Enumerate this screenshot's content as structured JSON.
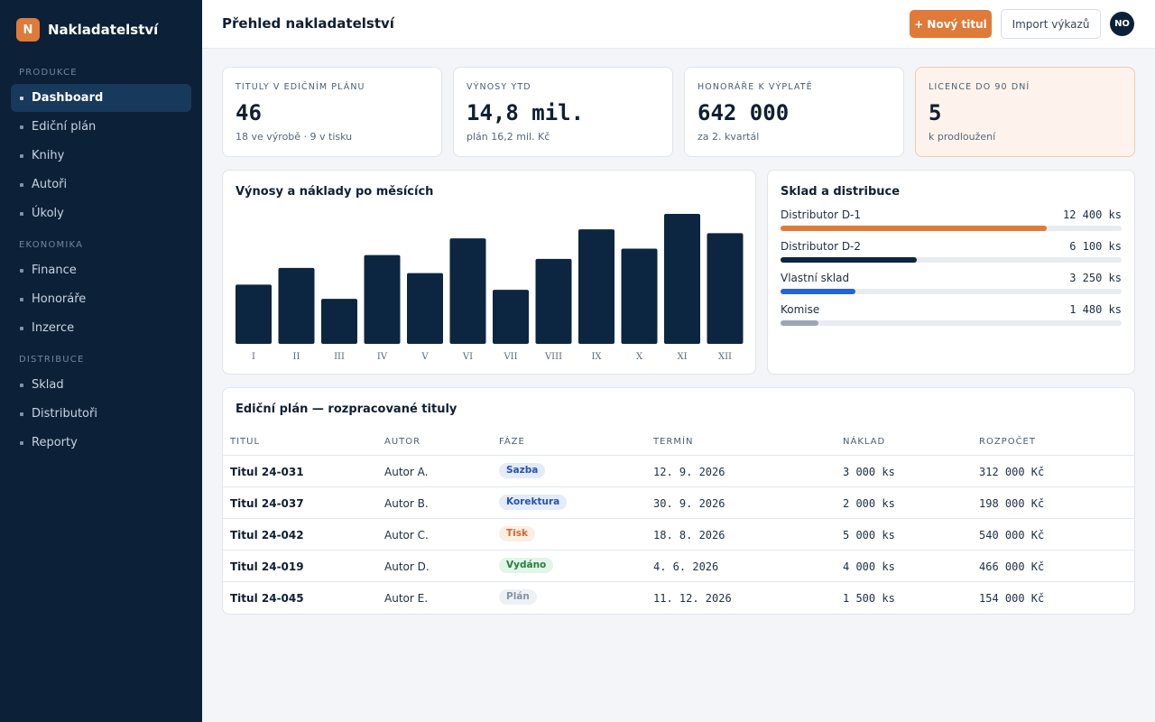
{
  "brand": {
    "logo_letter": "N",
    "name": "Nakladatelství"
  },
  "sidebar": {
    "sections": [
      {
        "label": "Produkce",
        "items": [
          {
            "label": "Dashboard",
            "active": true
          },
          {
            "label": "Ediční plán"
          },
          {
            "label": "Knihy"
          },
          {
            "label": "Autoři"
          },
          {
            "label": "Úkoly"
          }
        ]
      },
      {
        "label": "Ekonomika",
        "items": [
          {
            "label": "Finance"
          },
          {
            "label": "Honoráře"
          },
          {
            "label": "Inzerce"
          }
        ]
      },
      {
        "label": "Distribuce",
        "items": [
          {
            "label": "Sklad"
          },
          {
            "label": "Distributoři"
          },
          {
            "label": "Reporty"
          }
        ]
      }
    ]
  },
  "header": {
    "title": "Přehled nakladatelství",
    "new_title_button": "+ Nový titul",
    "import_button": "Import výkazů",
    "avatar_initials": "NO"
  },
  "kpis": [
    {
      "label": "Tituly v edičním plánu",
      "value": "46",
      "sub": "18 ve výrobě · 9 v tisku"
    },
    {
      "label": "Výnosy YTD",
      "value": "14,8 mil.",
      "sub": "plán 16,2 mil. Kč"
    },
    {
      "label": "Honoráře k výplatě",
      "value": "642 000",
      "sub": "za 2. kvartál"
    },
    {
      "label": "Licence do 90 dní",
      "value": "5",
      "sub": "k prodloužení",
      "highlight": true
    }
  ],
  "revenue_chart": {
    "title": "Výnosy a náklady po měsících"
  },
  "chart_data": {
    "type": "bar",
    "title": "Výnosy a náklady po měsících",
    "categories": [
      "I",
      "II",
      "III",
      "IV",
      "V",
      "VI",
      "VII",
      "VIII",
      "IX",
      "X",
      "XI",
      "XII"
    ],
    "values": [
      46,
      59,
      35,
      69,
      55,
      82,
      42,
      66,
      89,
      74,
      101,
      86
    ],
    "ylim": [
      0,
      101
    ],
    "grid": false,
    "color": "#0c2540"
  },
  "stock": {
    "title": "Sklad a distribuce",
    "rows": [
      {
        "label": "Distributor D-1",
        "value": "12 400 ks",
        "fraction": 0.78,
        "color": "#e07a38"
      },
      {
        "label": "Distributor D-2",
        "value": "6 100 ks",
        "fraction": 0.4,
        "color": "#0c2540"
      },
      {
        "label": "Vlastní sklad",
        "value": "3 250 ks",
        "fraction": 0.22,
        "color": "#2563d9"
      },
      {
        "label": "Komise",
        "value": "1 480 ks",
        "fraction": 0.11,
        "color": "#9aa6b6"
      }
    ]
  },
  "editorial_table": {
    "title": "Ediční plán — rozpracované tituly",
    "columns": [
      "Titul",
      "Autor",
      "Fáze",
      "Termín",
      "Náklad",
      "Rozpočet"
    ],
    "rows": [
      {
        "title": "Titul 24-031",
        "author": "Autor A.",
        "phase": "Sazba",
        "phase_bg": "#e4ecfb",
        "phase_fg": "#2552b8",
        "deadline": "12. 9. 2026",
        "print_run": "3 000 ks",
        "budget": "312 000 Kč"
      },
      {
        "title": "Titul 24-037",
        "author": "Autor B.",
        "phase": "Korektura",
        "phase_bg": "#e4ecfb",
        "phase_fg": "#2552b8",
        "deadline": "30. 9. 2026",
        "print_run": "2 000 ks",
        "budget": "198 000 Kč"
      },
      {
        "title": "Titul 24-042",
        "author": "Autor C.",
        "phase": "Tisk",
        "phase_bg": "#fdeee3",
        "phase_fg": "#d2692a",
        "deadline": "18. 8. 2026",
        "print_run": "5 000 ks",
        "budget": "540 000 Kč"
      },
      {
        "title": "Titul 24-019",
        "author": "Autor D.",
        "phase": "Vydáno",
        "phase_bg": "#e2f5e8",
        "phase_fg": "#25803f",
        "deadline": "4. 6. 2026",
        "print_run": "4 000 ks",
        "budget": "466 000 Kč"
      },
      {
        "title": "Titul 24-045",
        "author": "Autor E.",
        "phase": "Plán",
        "phase_bg": "#eef1f4",
        "phase_fg": "#8593a5",
        "deadline": "11. 12. 2026",
        "print_run": "1 500 ks",
        "budget": "154 000 Kč"
      }
    ]
  }
}
